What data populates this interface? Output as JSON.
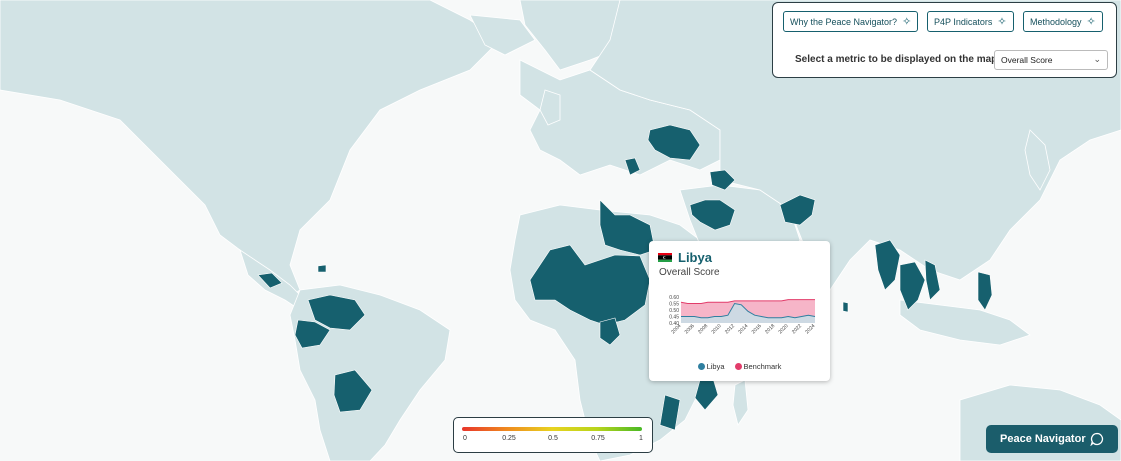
{
  "header": {
    "buttons": [
      {
        "label": "Why the Peace Navigator?",
        "icon": "sparkle-icon"
      },
      {
        "label": "P4P Indicators",
        "icon": "sparkle-icon"
      },
      {
        "label": "Methodology",
        "icon": "sparkle-icon"
      }
    ],
    "metric_label": "Select a metric to be displayed on the map:",
    "metric_value": "Overall Score"
  },
  "map": {
    "land_color": "#d2e3e5",
    "ocean_color": "#f7f9f9",
    "highlight_color": "#16606e",
    "highlighted_regions": [
      "Ukraine",
      "Syria",
      "Iraq",
      "Afghanistan",
      "Libya",
      "Sahel",
      "Nigeria",
      "Cameroon",
      "Central African Republic",
      "South Sudan",
      "Ethiopia",
      "Somalia",
      "Mozambique",
      "Colombia",
      "Venezuela",
      "Bolivia",
      "Central America",
      "Myanmar",
      "Thailand",
      "Philippines",
      "Sri Lanka"
    ]
  },
  "tooltip": {
    "country": "Libya",
    "metric": "Overall Score",
    "y_ticks": [
      "0.60",
      "0.55",
      "0.50",
      "0.45",
      "0.40"
    ],
    "x_ticks": [
      "2004",
      "2006",
      "2008",
      "2010",
      "2012",
      "2014",
      "2016",
      "2018",
      "2020",
      "2022",
      "2024"
    ],
    "legend": [
      {
        "label": "Libya",
        "color": "#2f7fa0"
      },
      {
        "label": "Benchmark",
        "color": "#e23c6a"
      }
    ]
  },
  "chart_data": {
    "type": "area",
    "ylim": [
      0.4,
      0.6
    ],
    "x": [
      2004,
      2005,
      2006,
      2007,
      2008,
      2009,
      2010,
      2011,
      2012,
      2013,
      2014,
      2015,
      2016,
      2017,
      2018,
      2019,
      2020,
      2021,
      2022,
      2023,
      2024
    ],
    "series": [
      {
        "name": "Libya",
        "values": [
          0.45,
          0.45,
          0.45,
          0.44,
          0.44,
          0.45,
          0.45,
          0.46,
          0.55,
          0.54,
          0.49,
          0.46,
          0.45,
          0.44,
          0.44,
          0.44,
          0.45,
          0.44,
          0.45,
          0.46,
          0.45
        ]
      },
      {
        "name": "Benchmark",
        "values": [
          0.56,
          0.55,
          0.55,
          0.55,
          0.56,
          0.56,
          0.56,
          0.56,
          0.57,
          0.57,
          0.57,
          0.57,
          0.57,
          0.57,
          0.57,
          0.57,
          0.58,
          0.58,
          0.58,
          0.58,
          0.58
        ]
      }
    ]
  },
  "scale_legend": {
    "ticks": [
      "0",
      "0.25",
      "0.5",
      "0.75",
      "1"
    ]
  },
  "peace_navigator": {
    "label": "Peace Navigator",
    "icon": "chat-bubble-icon"
  }
}
